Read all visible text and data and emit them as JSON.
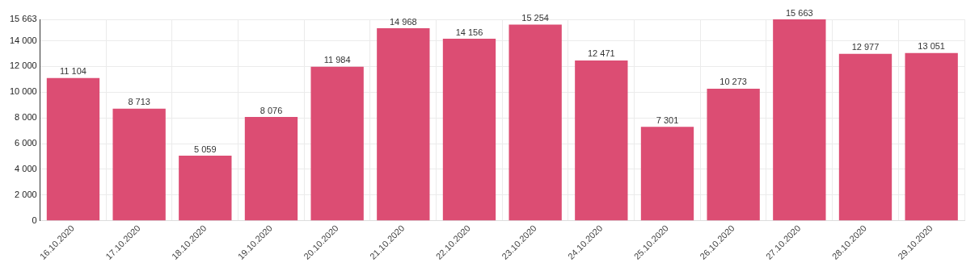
{
  "chart_data": {
    "type": "bar",
    "categories": [
      "16.10.2020",
      "17.10.2020",
      "18.10.2020",
      "19.10.2020",
      "20.10.2020",
      "21.10.2020",
      "22.10.2020",
      "23.10.2020",
      "24.10.2020",
      "25.10.2020",
      "26.10.2020",
      "27.10.2020",
      "28.10.2020",
      "29.10.2020"
    ],
    "values": [
      11104,
      8713,
      5059,
      8076,
      11984,
      14968,
      14156,
      15254,
      12471,
      7301,
      10273,
      15663,
      12977,
      13051
    ],
    "value_labels": [
      "11 104",
      "8 713",
      "5 059",
      "8 076",
      "11 984",
      "14 968",
      "14 156",
      "15 254",
      "12 471",
      "7 301",
      "10 273",
      "15 663",
      "12 977",
      "13 051"
    ],
    "color": "#dc4d73",
    "ylim": [
      0,
      15663
    ],
    "yticks": [
      {
        "value": 0,
        "label": "0"
      },
      {
        "value": 2000,
        "label": "2 000"
      },
      {
        "value": 4000,
        "label": "4 000"
      },
      {
        "value": 6000,
        "label": "6 000"
      },
      {
        "value": 8000,
        "label": "8 000"
      },
      {
        "value": 10000,
        "label": "10 000"
      },
      {
        "value": 12000,
        "label": "12 000"
      },
      {
        "value": 14000,
        "label": "14 000"
      },
      {
        "value": 15663,
        "label": "15 663"
      }
    ],
    "grid": true
  }
}
